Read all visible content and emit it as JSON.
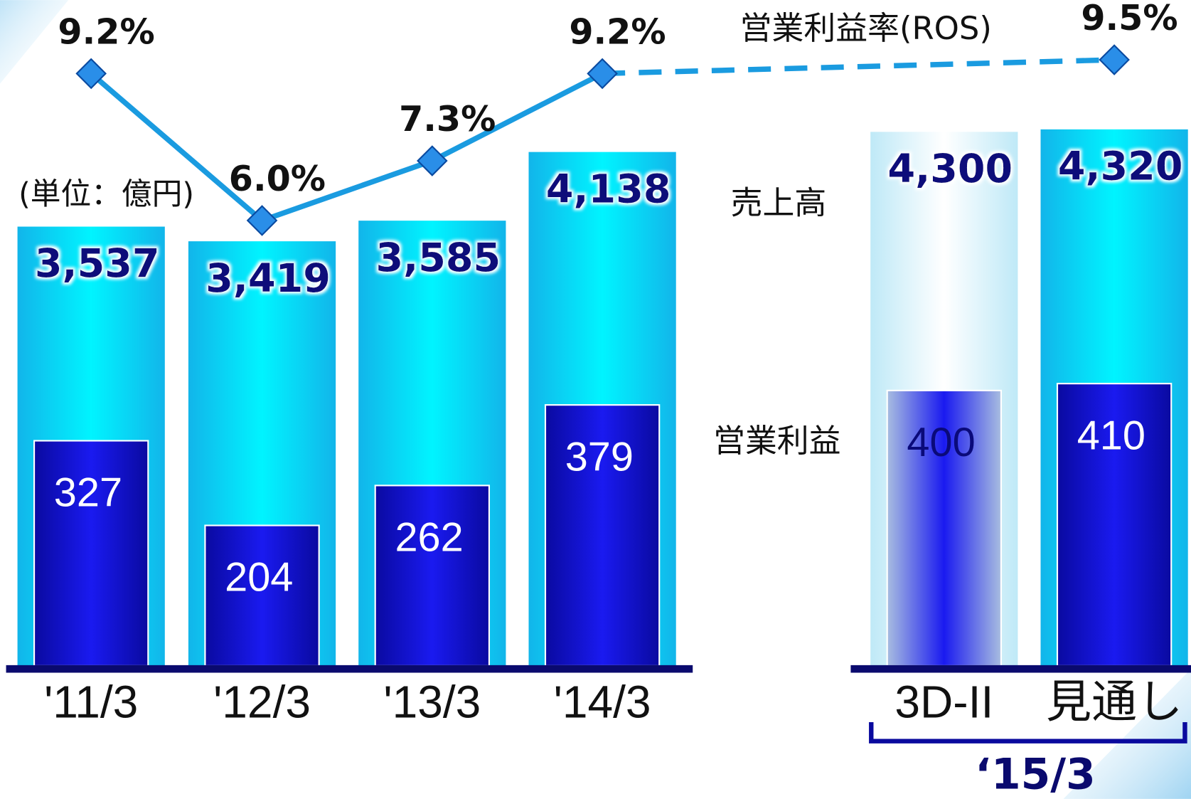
{
  "chart_data": {
    "type": "bar",
    "unit_label": "(単位：億円)",
    "categories": [
      "'11/3",
      "'12/3",
      "'13/3",
      "'14/3",
      "3D-II",
      "見通し"
    ],
    "group_label": "‘15/3",
    "ylim": [
      0,
      5361
    ],
    "y2lim": [
      0,
      967
    ],
    "series": [
      {
        "name": "売上高",
        "type": "bar",
        "values": [
          3537,
          3419,
          3585,
          4138,
          4300,
          4320
        ],
        "value_labels": [
          "3,537",
          "3,419",
          "3,585",
          "4,138",
          "4,300",
          "4,320"
        ],
        "colors": [
          "#12b5ea",
          "#12b5ea",
          "#12b5ea",
          "#12b5ea",
          "#bfe9f7",
          "#12b5ea"
        ]
      },
      {
        "name": "営業利益",
        "type": "bar",
        "axis": "y2",
        "values": [
          327,
          204,
          262,
          379,
          400,
          410
        ],
        "colors": [
          "#0a0aa0",
          "#0a0aa0",
          "#0a0aa0",
          "#0a0aa0",
          "#a8bde0",
          "#0a0aa0"
        ]
      },
      {
        "name": "営業利益率(ROS)",
        "type": "line",
        "color": "#1a9be0",
        "ylim": [
          -3.7,
          10.8
        ],
        "values": [
          9.2,
          6.0,
          7.3,
          9.2,
          null,
          9.5
        ],
        "value_labels": [
          "9.2%",
          "6.0%",
          "7.3%",
          "9.2%",
          null,
          "9.5%"
        ]
      }
    ]
  }
}
